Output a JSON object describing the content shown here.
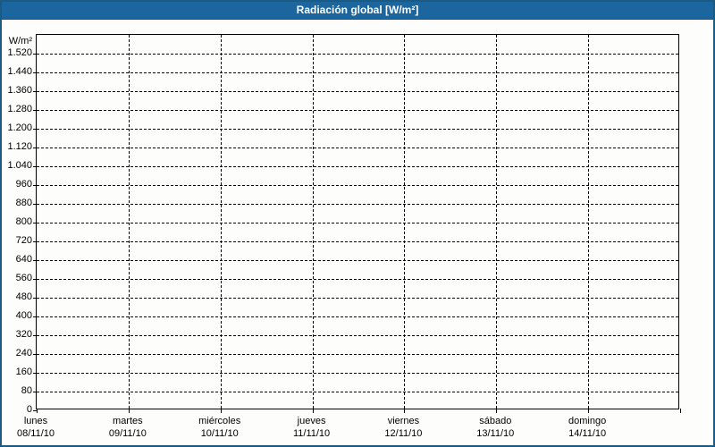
{
  "window": {
    "title_bar": "Radiación global [W/m²]"
  },
  "colors": {
    "title_bar_bg": "#1C66A0",
    "title_bar_text": "#FFFFFF",
    "outer_border": "#1B5A82",
    "chart_bg": "#FDFDFB",
    "grid_line": "#000000",
    "label_text": "#000000"
  },
  "chart_data": {
    "type": "line",
    "title": "Radiación global [W/m²]",
    "xlabel": "",
    "ylabel": "W/m²",
    "grid": true,
    "legend": false,
    "y_axis": {
      "unit": "W/m²",
      "min": 0,
      "max": 1600,
      "tick_step": 80,
      "ticks": [
        {
          "value": 0,
          "label": "0"
        },
        {
          "value": 80,
          "label": "80"
        },
        {
          "value": 160,
          "label": "160"
        },
        {
          "value": 240,
          "label": "240"
        },
        {
          "value": 320,
          "label": "320"
        },
        {
          "value": 400,
          "label": "400"
        },
        {
          "value": 480,
          "label": "480"
        },
        {
          "value": 560,
          "label": "560"
        },
        {
          "value": 640,
          "label": "640"
        },
        {
          "value": 720,
          "label": "720"
        },
        {
          "value": 800,
          "label": "800"
        },
        {
          "value": 880,
          "label": "880"
        },
        {
          "value": 960,
          "label": "960"
        },
        {
          "value": 1040,
          "label": "1.040"
        },
        {
          "value": 1120,
          "label": "1.120"
        },
        {
          "value": 1200,
          "label": "1.200"
        },
        {
          "value": 1280,
          "label": "1.280"
        },
        {
          "value": 1360,
          "label": "1.360"
        },
        {
          "value": 1440,
          "label": "1.440"
        },
        {
          "value": 1520,
          "label": "1.520"
        }
      ]
    },
    "x_axis": {
      "interval_count": 7,
      "days": [
        {
          "name": "lunes",
          "date": "08/11/10"
        },
        {
          "name": "martes",
          "date": "09/11/10"
        },
        {
          "name": "miércoles",
          "date": "10/11/10"
        },
        {
          "name": "jueves",
          "date": "11/11/10"
        },
        {
          "name": "viernes",
          "date": "12/11/10"
        },
        {
          "name": "sábado",
          "date": "13/11/10"
        },
        {
          "name": "domingo",
          "date": "14/11/10"
        }
      ]
    },
    "series": []
  }
}
